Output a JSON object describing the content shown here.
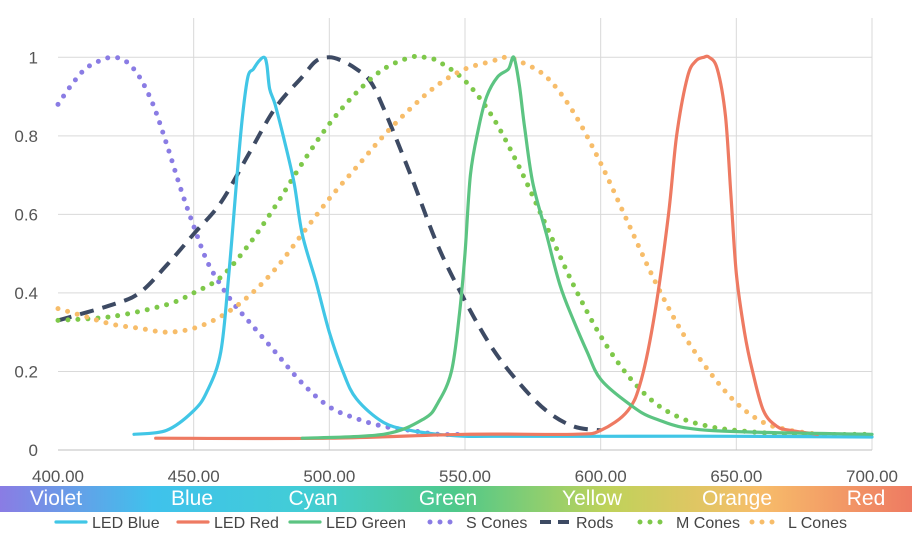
{
  "chart_data": {
    "type": "line",
    "title": "",
    "xlabel": "",
    "ylabel": "",
    "xlim": [
      400,
      700
    ],
    "ylim": [
      0,
      1.1
    ],
    "x_ticks": [
      "400.00",
      "450.00",
      "500.00",
      "550.00",
      "600.00",
      "650.00",
      "700.00"
    ],
    "y_ticks": [
      "0",
      "0.2",
      "0.4",
      "0.6",
      "0.8",
      "1"
    ],
    "grid": true,
    "legend_position": "bottom",
    "spectrum_band": {
      "labels": [
        "Violet",
        "Blue",
        "Cyan",
        "Green",
        "Yellow",
        "Orange",
        "Red"
      ],
      "colors": [
        "#8a7ce4",
        "#3fc2ec",
        "#42cdd6",
        "#4fc98a",
        "#bfd25a",
        "#f7bd6a",
        "#ee7a62"
      ]
    },
    "series": [
      {
        "name": "LED Blue",
        "color": "#41c6e6",
        "style": "solid",
        "x": [
          428,
          440,
          450,
          455,
          460,
          463,
          466,
          468,
          470,
          472,
          474,
          476,
          477,
          478,
          480,
          483,
          487,
          490,
          495,
          500,
          505,
          510,
          520,
          530,
          540,
          550,
          560,
          600,
          650,
          700
        ],
        "y": [
          0.04,
          0.05,
          0.1,
          0.15,
          0.25,
          0.45,
          0.7,
          0.85,
          0.95,
          0.97,
          0.99,
          1.0,
          0.98,
          0.92,
          0.88,
          0.8,
          0.68,
          0.55,
          0.43,
          0.3,
          0.2,
          0.13,
          0.07,
          0.05,
          0.04,
          0.035,
          0.035,
          0.035,
          0.035,
          0.033
        ]
      },
      {
        "name": "LED Red",
        "color": "#ee7a62",
        "style": "solid",
        "x": [
          436,
          500,
          550,
          590,
          600,
          610,
          615,
          620,
          625,
          628,
          632,
          635,
          638,
          640,
          643,
          646,
          648,
          650,
          653,
          656,
          660,
          665,
          670,
          680
        ],
        "y": [
          0.03,
          0.03,
          0.04,
          0.04,
          0.05,
          0.1,
          0.18,
          0.35,
          0.6,
          0.8,
          0.95,
          0.99,
          1.0,
          1.0,
          0.97,
          0.85,
          0.65,
          0.45,
          0.3,
          0.2,
          0.1,
          0.06,
          0.05,
          0.04
        ]
      },
      {
        "name": "LED Green",
        "color": "#5cc482",
        "style": "solid",
        "x": [
          490,
          520,
          535,
          540,
          545,
          548,
          550,
          552,
          555,
          558,
          562,
          566,
          568,
          570,
          572,
          575,
          580,
          585,
          590,
          595,
          600,
          610,
          620,
          640,
          700
        ],
        "y": [
          0.03,
          0.04,
          0.08,
          0.12,
          0.2,
          0.35,
          0.5,
          0.7,
          0.82,
          0.9,
          0.95,
          0.97,
          1.0,
          0.93,
          0.82,
          0.68,
          0.55,
          0.42,
          0.33,
          0.25,
          0.18,
          0.12,
          0.08,
          0.05,
          0.04
        ]
      },
      {
        "name": "S Cones",
        "color": "#8a7ce4",
        "style": "dotted",
        "x": [
          400,
          405,
          410,
          415,
          420,
          425,
          430,
          435,
          440,
          445,
          450,
          455,
          460,
          465,
          470,
          480,
          490,
          500,
          510,
          520,
          530,
          540,
          550
        ],
        "y": [
          0.88,
          0.93,
          0.97,
          0.99,
          1.0,
          0.99,
          0.95,
          0.88,
          0.78,
          0.67,
          0.57,
          0.48,
          0.42,
          0.37,
          0.33,
          0.25,
          0.17,
          0.11,
          0.08,
          0.06,
          0.05,
          0.04,
          0.04
        ]
      },
      {
        "name": "Rods",
        "color": "#3d4a63",
        "style": "dashed",
        "x": [
          400,
          420,
          430,
          440,
          450,
          460,
          470,
          480,
          490,
          495,
          500,
          505,
          510,
          515,
          520,
          530,
          540,
          550,
          560,
          570,
          580,
          590,
          600
        ],
        "y": [
          0.33,
          0.37,
          0.4,
          0.47,
          0.55,
          0.63,
          0.75,
          0.87,
          0.95,
          0.99,
          1.0,
          0.99,
          0.97,
          0.94,
          0.87,
          0.7,
          0.52,
          0.38,
          0.26,
          0.17,
          0.1,
          0.06,
          0.05
        ]
      },
      {
        "name": "M Cones",
        "color": "#7ec84a",
        "style": "dotted",
        "x": [
          400,
          420,
          440,
          450,
          460,
          470,
          480,
          490,
          500,
          510,
          520,
          530,
          535,
          540,
          550,
          560,
          570,
          580,
          590,
          600,
          610,
          620,
          630,
          640,
          650,
          670,
          700
        ],
        "y": [
          0.33,
          0.34,
          0.37,
          0.4,
          0.44,
          0.52,
          0.62,
          0.73,
          0.83,
          0.91,
          0.97,
          1.0,
          1.0,
          0.99,
          0.94,
          0.85,
          0.72,
          0.57,
          0.42,
          0.29,
          0.19,
          0.12,
          0.08,
          0.06,
          0.05,
          0.04,
          0.04
        ]
      },
      {
        "name": "L Cones",
        "color": "#f7bd6a",
        "style": "dotted",
        "x": [
          400,
          410,
          420,
          430,
          440,
          450,
          460,
          470,
          480,
          490,
          500,
          510,
          520,
          530,
          540,
          550,
          560,
          565,
          570,
          580,
          590,
          600,
          610,
          620,
          630,
          640,
          650,
          660,
          670,
          680
        ],
        "y": [
          0.36,
          0.34,
          0.32,
          0.31,
          0.3,
          0.31,
          0.34,
          0.39,
          0.46,
          0.55,
          0.64,
          0.72,
          0.8,
          0.87,
          0.93,
          0.97,
          0.99,
          1.0,
          0.99,
          0.95,
          0.86,
          0.73,
          0.58,
          0.43,
          0.3,
          0.2,
          0.12,
          0.07,
          0.05,
          0.04
        ]
      }
    ]
  }
}
